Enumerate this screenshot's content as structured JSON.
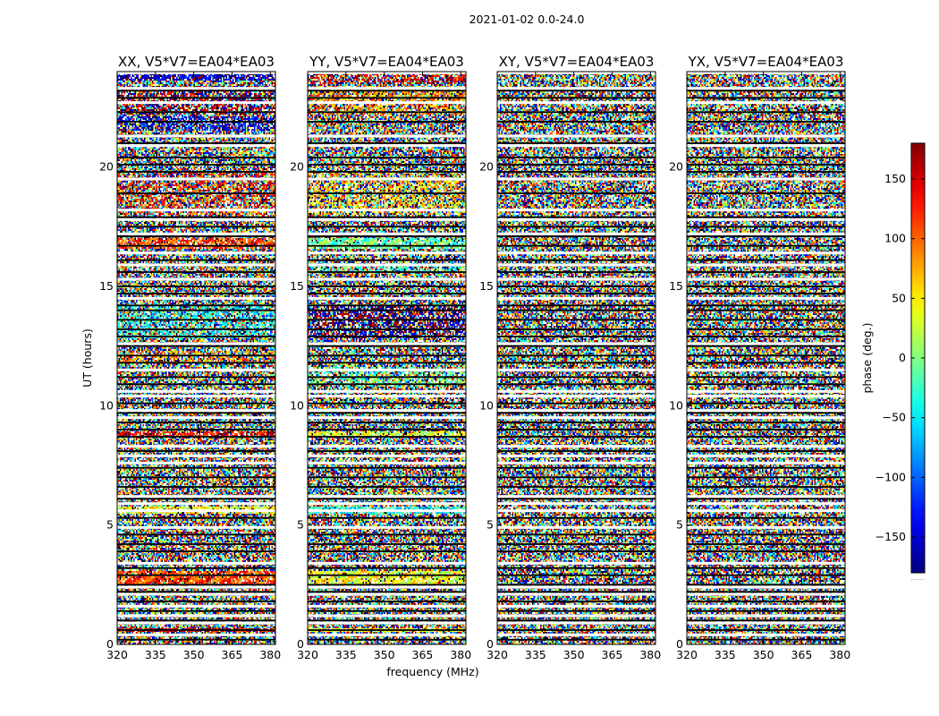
{
  "figure": {
    "suptitle": "2021-01-02 0.0-24.0",
    "xlabel": "frequency (MHz)",
    "ylabel": "UT (hours)",
    "colorbar_label": "phase (deg.)",
    "colorbar_footer": "......"
  },
  "chart_data": [
    {
      "type": "heatmap",
      "title": "XX, V5*V7=EA04*EA03",
      "polarization": "XX",
      "x_ticks": [
        "320",
        "335",
        "350",
        "365",
        "380"
      ],
      "x_tick_values": [
        320,
        335,
        350,
        365,
        380
      ],
      "y_ticks": [
        "0",
        "5",
        "10",
        "15",
        "20"
      ],
      "y_tick_values": [
        0,
        5,
        10,
        15,
        20
      ],
      "xlim": [
        320,
        382
      ],
      "ylim": [
        0,
        24
      ],
      "coherent_bands": [
        {
          "y": [
            23.6,
            24.0
          ],
          "phase": -150
        },
        {
          "y": [
            22.2,
            23.4
          ],
          "phase": 170,
          "mix": 0.5
        },
        {
          "y": [
            21.5,
            22.1
          ],
          "phase": -140,
          "mix": 0.6
        },
        {
          "y": [
            18.0,
            19.8
          ],
          "phase": 120,
          "mix": 0.4
        },
        {
          "y": [
            16.6,
            17.0
          ],
          "phase": 110
        },
        {
          "y": [
            12.8,
            14.2
          ],
          "phase": -40,
          "mix": 0.5
        },
        {
          "y": [
            11.8,
            12.3
          ],
          "phase": 80,
          "mix": 0.4
        },
        {
          "y": [
            8.7,
            8.9
          ],
          "phase": 140
        },
        {
          "y": [
            5.5,
            5.8
          ],
          "phase": 40
        },
        {
          "y": [
            2.5,
            3.1
          ],
          "phase": 110
        },
        {
          "y": [
            0.5,
            0.7
          ],
          "phase": 150
        }
      ]
    },
    {
      "type": "heatmap",
      "title": "YY, V5*V7=EA04*EA03",
      "polarization": "YY",
      "x_ticks": [
        "320",
        "335",
        "350",
        "365",
        "380"
      ],
      "x_tick_values": [
        320,
        335,
        350,
        365,
        380
      ],
      "y_ticks": [
        "0",
        "5",
        "10",
        "15",
        "20"
      ],
      "y_tick_values": [
        0,
        5,
        10,
        15,
        20
      ],
      "xlim": [
        320,
        382
      ],
      "ylim": [
        0,
        24
      ],
      "coherent_bands": [
        {
          "y": [
            23.5,
            24.0
          ],
          "phase": 150,
          "mix": 0.5
        },
        {
          "y": [
            22.2,
            23.4
          ],
          "phase": 80,
          "mix": 0.5
        },
        {
          "y": [
            18.0,
            19.8
          ],
          "phase": 60,
          "mix": 0.4
        },
        {
          "y": [
            16.6,
            17.0
          ],
          "phase": -10
        },
        {
          "y": [
            15.6,
            16.0
          ],
          "phase": -20,
          "mix": 0.5
        },
        {
          "y": [
            12.8,
            14.2
          ],
          "phase": -170,
          "mix": 0.5
        },
        {
          "y": [
            10.8,
            11.6
          ],
          "phase": -10,
          "mix": 0.5
        },
        {
          "y": [
            8.7,
            8.9
          ],
          "phase": 30
        },
        {
          "y": [
            5.5,
            5.8
          ],
          "phase": -40
        },
        {
          "y": [
            2.5,
            3.1
          ],
          "phase": 40
        },
        {
          "y": [
            0.5,
            0.7
          ],
          "phase": 50
        }
      ]
    },
    {
      "type": "heatmap",
      "title": "XY, V5*V7=EA04*EA03",
      "polarization": "XY",
      "x_ticks": [
        "320",
        "335",
        "350",
        "365",
        "380"
      ],
      "x_tick_values": [
        320,
        335,
        350,
        365,
        380
      ],
      "y_ticks": [
        "0",
        "5",
        "10",
        "15",
        "20"
      ],
      "y_tick_values": [
        0,
        5,
        10,
        15,
        20
      ],
      "xlim": [
        320,
        382
      ],
      "ylim": [
        0,
        24
      ],
      "coherent_bands": []
    },
    {
      "type": "heatmap",
      "title": "YX, V5*V7=EA04*EA03",
      "polarization": "YX",
      "x_ticks": [
        "320",
        "335",
        "350",
        "365",
        "380"
      ],
      "x_tick_values": [
        320,
        335,
        350,
        365,
        380
      ],
      "y_ticks": [
        "0",
        "5",
        "10",
        "15",
        "20"
      ],
      "y_tick_values": [
        0,
        5,
        10,
        15,
        20
      ],
      "xlim": [
        320,
        382
      ],
      "ylim": [
        0,
        24
      ],
      "coherent_bands": []
    }
  ],
  "shared_flags": {
    "white_gap_hours": [
      23.95,
      23.3,
      22.7,
      21.3,
      20.9,
      19.5,
      18.2,
      17.8,
      17.2,
      16.4,
      15.9,
      15.3,
      14.5,
      12.6,
      11.5,
      10.6,
      10.4,
      9.8,
      9.5,
      8.3,
      7.9,
      7.6,
      6.2,
      5.9,
      5.6,
      4.9,
      3.4,
      2.4,
      2.1,
      1.6,
      1.2,
      0.9,
      0.4
    ],
    "black_line_hours": [
      23.2,
      22.9,
      22.3,
      21.9,
      21.0,
      20.4,
      20.1,
      19.8,
      18.9,
      17.9,
      17.5,
      17.1,
      16.7,
      16.1,
      15.6,
      15.0,
      14.7,
      14.2,
      14.0,
      13.6,
      13.2,
      12.9,
      12.5,
      12.1,
      11.8,
      11.2,
      10.9,
      10.1,
      9.7,
      9.3,
      9.0,
      8.7,
      8.1,
      7.4,
      7.0,
      6.6,
      6.1,
      5.3,
      4.6,
      4.2,
      3.9,
      3.2,
      2.9,
      2.5,
      2.2,
      1.8,
      1.4,
      1.0,
      0.6,
      0.2
    ]
  },
  "colorbar": {
    "colormap": "jet",
    "vmin": -180,
    "vmax": 180,
    "ticks": [
      "150",
      "100",
      "50",
      "0",
      "−50",
      "−100",
      "−150"
    ],
    "tick_values": [
      150,
      100,
      50,
      0,
      -50,
      -100,
      -150
    ]
  }
}
